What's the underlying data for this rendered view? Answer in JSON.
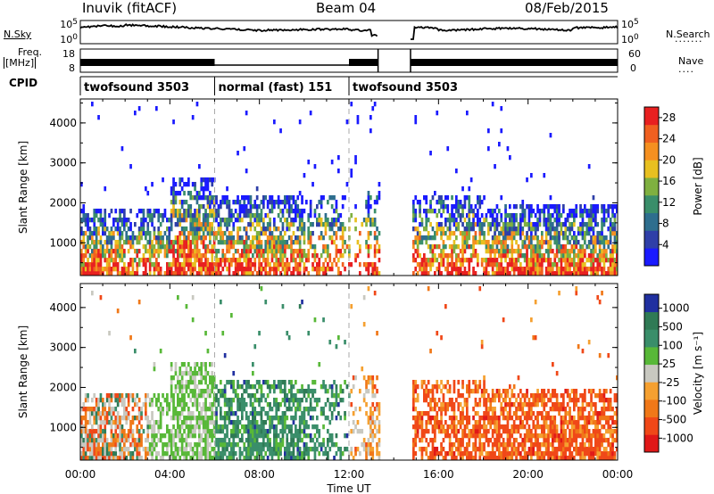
{
  "header": {
    "station": "Inuvik (fitACF)",
    "beam": "Beam 04",
    "date": "08/Feb/2015"
  },
  "noise_panel": {
    "left_label": "N.Sky",
    "right_label": "N.Search",
    "y_ticks_left": [
      "10^5",
      "10^0"
    ],
    "y_ticks_right": [
      "10^5",
      "10^0"
    ]
  },
  "freq_panel": {
    "left_label_line1": "Freq.",
    "left_label_line2": "[MHz]",
    "right_label": "Nave",
    "y_ticks_left": [
      "18",
      "8"
    ],
    "y_ticks_right": [
      "60",
      "0"
    ]
  },
  "cpid": {
    "label": "CPID",
    "segments": [
      {
        "name": "twofsound 3503",
        "start_hour": 0,
        "end_hour": 6
      },
      {
        "name": "normal (fast) 151",
        "start_hour": 6,
        "end_hour": 12
      },
      {
        "name": "twofsound 3503",
        "start_hour": 12,
        "end_hour": 24
      }
    ]
  },
  "colors": {
    "power": [
      "#1a1aff",
      "#2f3fa8",
      "#2e6e8e",
      "#3a8e6a",
      "#7fb040",
      "#e8c020",
      "#f59020",
      "#f06020",
      "#e82020"
    ],
    "velocity": [
      "#e01818",
      "#f04818",
      "#f07818",
      "#f5a030",
      "#c8c8c0",
      "#58b838",
      "#3a8e6a",
      "#2f7a55",
      "#2030a0"
    ]
  },
  "chart_data": [
    {
      "type": "heatmap",
      "parameter": "Power",
      "ylabel": "Slant Range [km]",
      "y_ticks": [
        1000,
        2000,
        3000,
        4000
      ],
      "ylim": [
        180,
        4600
      ],
      "xlim": [
        0,
        24
      ],
      "colorbar_label": "Power [dB]",
      "colorbar_ticks": [
        4,
        8,
        12,
        16,
        20,
        24,
        28
      ],
      "colorbar_range": [
        0,
        30
      ]
    },
    {
      "type": "heatmap",
      "parameter": "Velocity",
      "ylabel": "Slant Range [km]",
      "y_ticks": [
        1000,
        2000,
        3000,
        4000
      ],
      "ylim": [
        180,
        4600
      ],
      "xlim": [
        0,
        24
      ],
      "colorbar_label": "Velocity [m s⁻¹]",
      "colorbar_ticks": [
        1000,
        500,
        100,
        25,
        -25,
        -100,
        -500,
        -1000
      ],
      "x_ticks": [
        "00:00",
        "04:00",
        "08:00",
        "12:00",
        "16:00",
        "20:00",
        "00:00"
      ],
      "xlabel": "Time UT"
    }
  ]
}
